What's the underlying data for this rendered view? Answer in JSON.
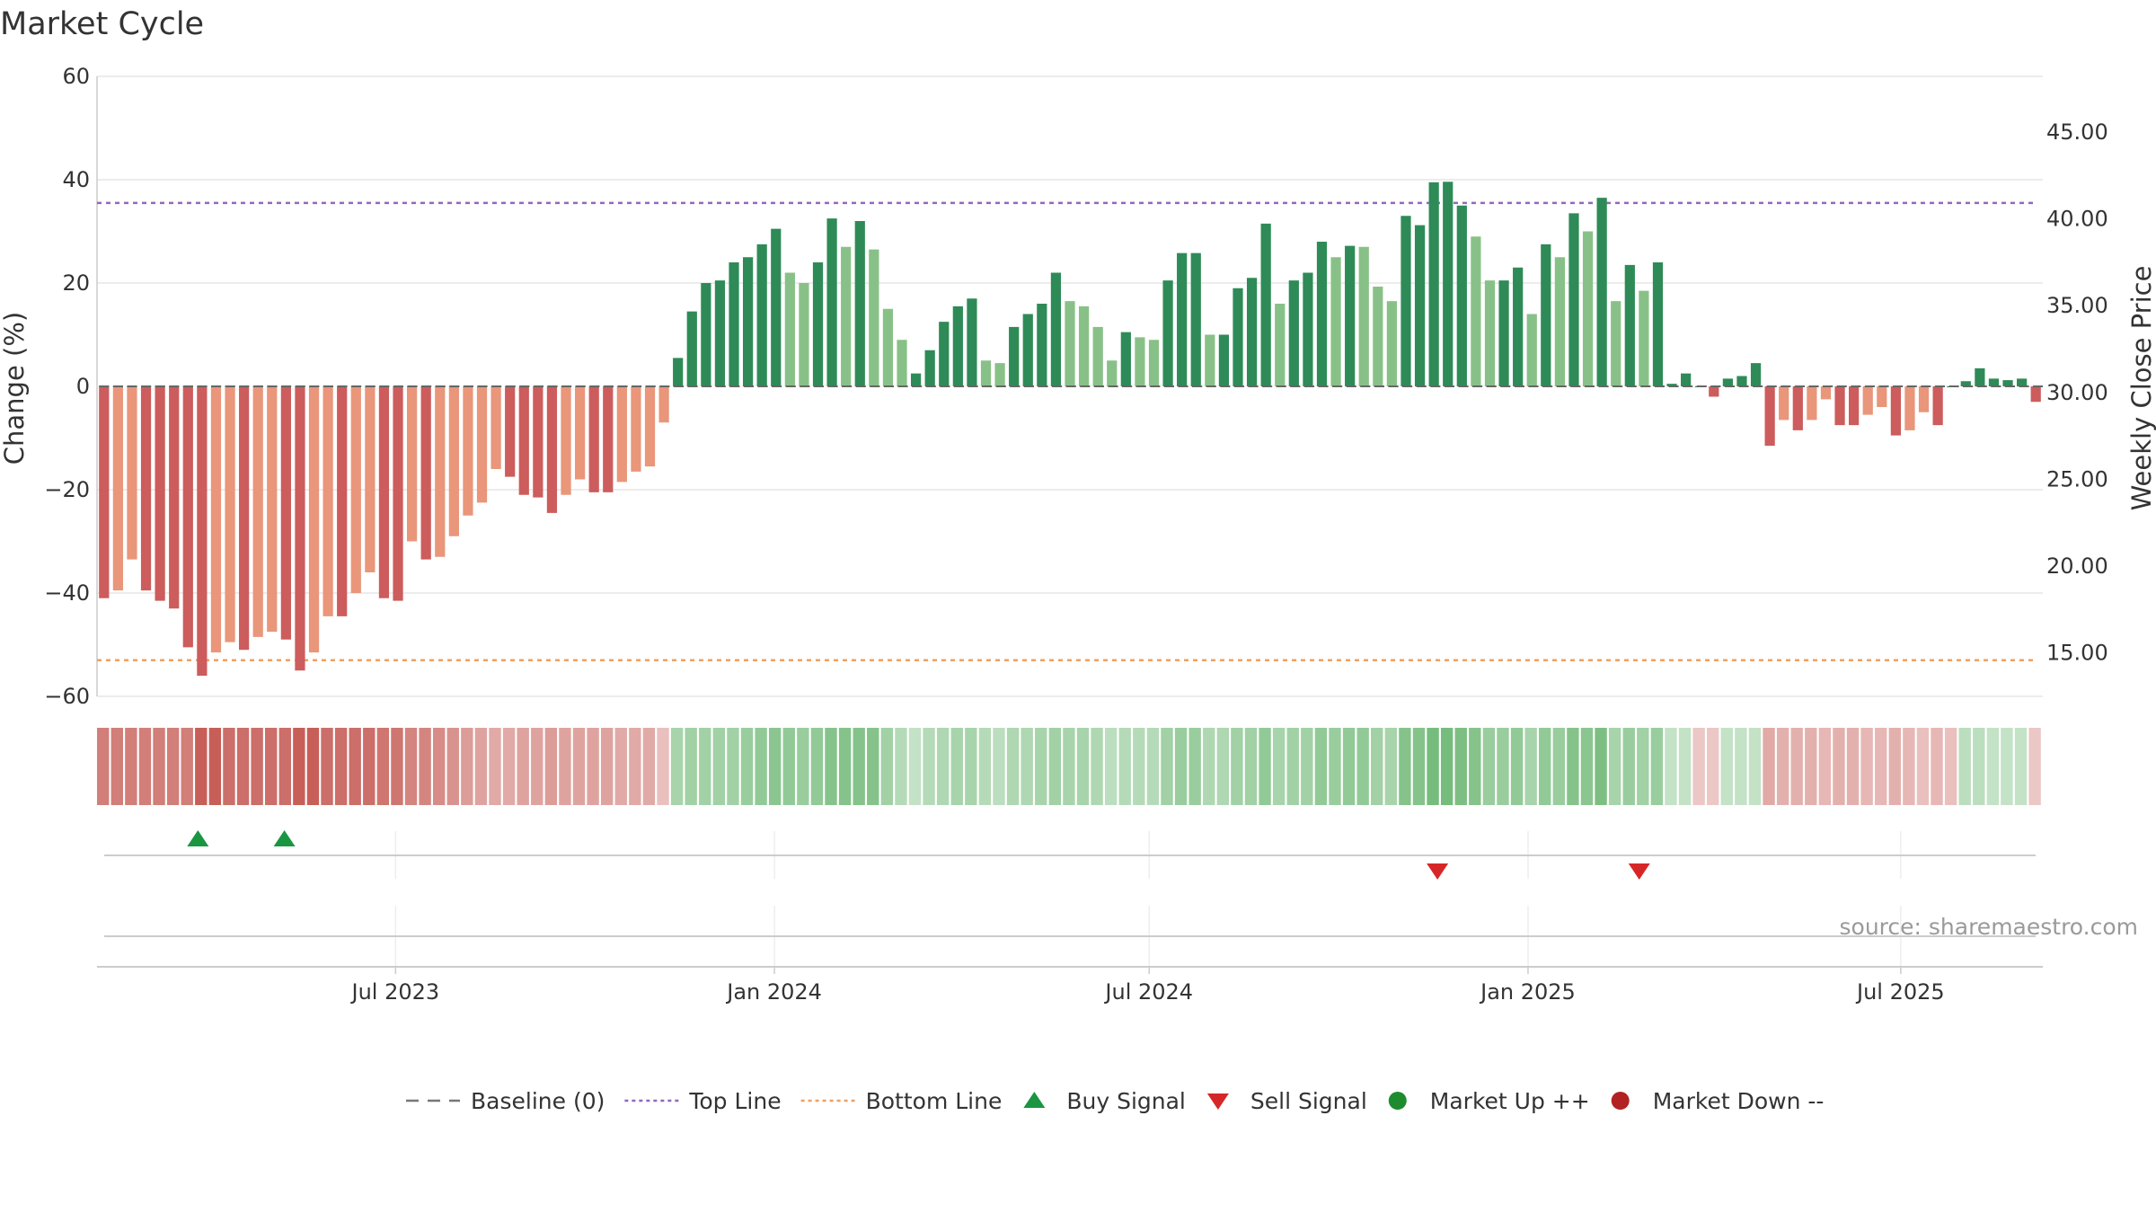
{
  "chart_data": {
    "type": "bar",
    "title": "Market Cycle",
    "ylabel_left": "Change (%)",
    "ylabel_right": "Weekly Close Price",
    "ylim_left": [
      -60,
      60
    ],
    "ylim_right": [
      12.5,
      48.2
    ],
    "yticks_left": [
      "60",
      "40",
      "20",
      "0",
      "−20",
      "−40",
      "−60"
    ],
    "yticks_right": [
      "45.00",
      "40.00",
      "35.00",
      "30.00",
      "25.00",
      "20.00",
      "15.00"
    ],
    "x_start": "2023-02-06",
    "x_end": "2025-09-08",
    "x_ticks": [
      {
        "label": "Jul 2023",
        "date": "2023-07-01"
      },
      {
        "label": "Jan 2024",
        "date": "2024-01-01"
      },
      {
        "label": "Jul 2024",
        "date": "2024-07-01"
      },
      {
        "label": "Jan 2025",
        "date": "2025-01-01"
      },
      {
        "label": "Jul 2025",
        "date": "2025-07-01"
      }
    ],
    "top_line": 35.5,
    "bottom_line": -53,
    "weekly_change_values": [
      -41,
      -39.5,
      -33.5,
      -39.5,
      -41.5,
      -43,
      -50.5,
      -56,
      -51.5,
      -49.5,
      -51,
      -48.5,
      -47.5,
      -49,
      -55,
      -51.5,
      -44.5,
      -44.5,
      -40,
      -36,
      -41,
      -41.5,
      -30,
      -33.5,
      -33,
      -29,
      -25,
      -22.5,
      -16,
      -17.5,
      -21,
      -21.5,
      -24.5,
      -21,
      -18,
      -20.5,
      -20.5,
      -18.5,
      -16.5,
      -15.5,
      -7,
      5.5,
      14.5,
      20,
      20.5,
      24,
      25,
      27.5,
      30.5,
      22,
      20,
      24,
      32.5,
      27,
      32,
      26.5,
      15,
      9,
      2.5,
      7,
      12.5,
      15.5,
      17,
      5,
      4.5,
      11.5,
      14,
      16,
      22,
      16.5,
      15.5,
      11.5,
      5,
      10.5,
      9.5,
      9,
      20.5,
      25.8,
      25.8,
      10,
      10,
      19,
      21,
      31.5,
      16,
      20.5,
      22,
      28,
      25,
      27.2,
      27,
      19.3,
      16.5,
      33,
      31.2,
      39.5,
      39.6,
      35,
      29,
      20.5,
      20.5,
      23,
      14,
      27.5,
      25,
      33.5,
      30,
      36.5,
      16.5,
      23.5,
      18.5,
      24,
      0.5,
      2.5,
      0,
      -2,
      1.5,
      2,
      4.5,
      -11.5,
      -6.5,
      -8.5,
      -6.5,
      -2.5,
      -7.5,
      -7.5,
      -5.5,
      -4,
      -9.5,
      -8.5,
      -5,
      -7.5,
      0,
      1,
      3.5,
      1.5,
      1.2,
      1.5,
      -3
    ],
    "sentiment_strip_values": [
      -0.7,
      -0.7,
      -0.7,
      -0.7,
      -0.7,
      -0.7,
      -0.7,
      -0.9,
      -0.9,
      -0.8,
      -0.8,
      -0.8,
      -0.8,
      -0.8,
      -0.9,
      -0.9,
      -0.8,
      -0.8,
      -0.8,
      -0.8,
      -0.75,
      -0.75,
      -0.65,
      -0.65,
      -0.6,
      -0.55,
      -0.5,
      -0.45,
      -0.4,
      -0.4,
      -0.45,
      -0.45,
      -0.5,
      -0.45,
      -0.45,
      -0.45,
      -0.45,
      -0.4,
      -0.4,
      -0.4,
      -0.25,
      0.45,
      0.5,
      0.5,
      0.5,
      0.5,
      0.55,
      0.6,
      0.65,
      0.6,
      0.55,
      0.6,
      0.7,
      0.7,
      0.7,
      0.7,
      0.5,
      0.35,
      0.25,
      0.35,
      0.4,
      0.45,
      0.45,
      0.35,
      0.3,
      0.4,
      0.4,
      0.45,
      0.5,
      0.45,
      0.45,
      0.4,
      0.3,
      0.35,
      0.35,
      0.35,
      0.5,
      0.55,
      0.55,
      0.4,
      0.4,
      0.5,
      0.5,
      0.6,
      0.45,
      0.5,
      0.5,
      0.6,
      0.55,
      0.6,
      0.6,
      0.5,
      0.45,
      0.7,
      0.7,
      0.8,
      0.8,
      0.75,
      0.7,
      0.55,
      0.55,
      0.6,
      0.45,
      0.6,
      0.55,
      0.7,
      0.65,
      0.75,
      0.45,
      0.55,
      0.5,
      0.55,
      0.25,
      0.25,
      -0.2,
      -0.2,
      0.25,
      0.25,
      0.25,
      -0.4,
      -0.35,
      -0.35,
      -0.35,
      -0.3,
      -0.35,
      -0.35,
      -0.3,
      -0.3,
      -0.35,
      -0.3,
      -0.25,
      -0.3,
      -0.25,
      0.3,
      0.3,
      0.25,
      0.25,
      0.25,
      -0.2
    ],
    "signals": [
      {
        "type": "buy",
        "date": "2023-03-27"
      },
      {
        "type": "buy",
        "date": "2023-05-08"
      },
      {
        "type": "sell",
        "date": "2024-11-18"
      },
      {
        "type": "sell",
        "date": "2025-02-24"
      }
    ],
    "legend": [
      {
        "label": "Baseline (0)",
        "kind": "line",
        "color": "#777777",
        "dash": "14,10"
      },
      {
        "label": "Top Line",
        "kind": "line",
        "color": "#9467bd",
        "dash": "4,4"
      },
      {
        "label": "Bottom Line",
        "kind": "line",
        "color": "#f0a060",
        "dash": "4,4"
      },
      {
        "label": "Buy Signal",
        "kind": "triangle-up",
        "color": "#1a9641"
      },
      {
        "label": "Sell Signal",
        "kind": "triangle-down",
        "color": "#d62728"
      },
      {
        "label": "Market Up ++",
        "kind": "circle",
        "color": "#1e8c2e"
      },
      {
        "label": "Market Down --",
        "kind": "circle",
        "color": "#b22222"
      }
    ],
    "colors": {
      "up_strong": "#2e8b57",
      "up_light": "#88c187",
      "down_strong": "#cd5c5c",
      "down_light": "#e9967a",
      "strip_up": "#5aae61",
      "strip_down": "#c2514a",
      "grid": "#e6e6e6",
      "axis": "#cccccc"
    },
    "grid": true,
    "legend_position": "bottom"
  },
  "source": "source: sharemaestro.com"
}
